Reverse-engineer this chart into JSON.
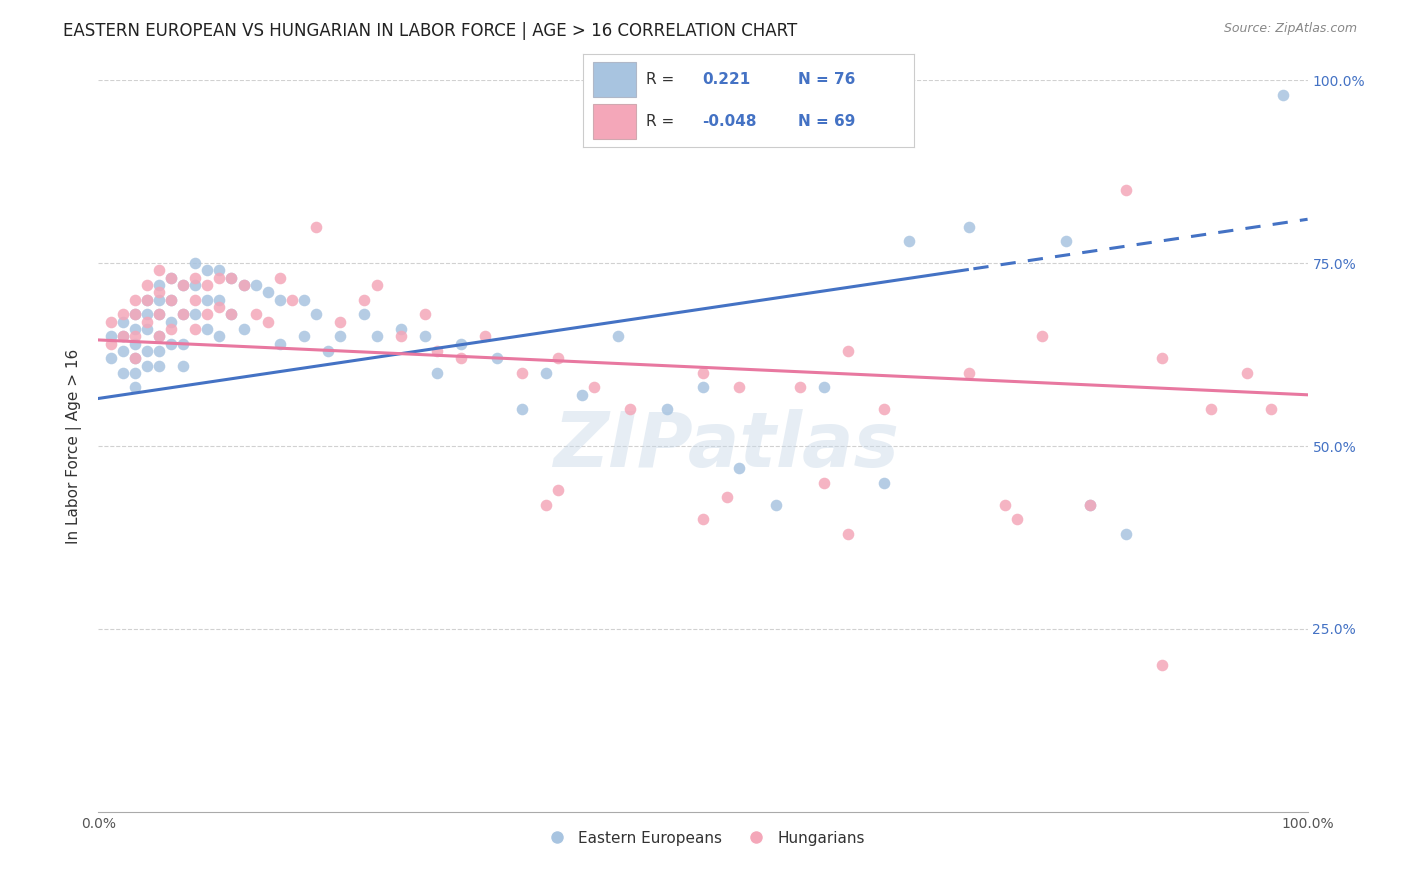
{
  "title": "EASTERN EUROPEAN VS HUNGARIAN IN LABOR FORCE | AGE > 16 CORRELATION CHART",
  "source_text": "Source: ZipAtlas.com",
  "ylabel": "In Labor Force | Age > 16",
  "xlim": [
    0.0,
    1.0
  ],
  "ylim": [
    0.0,
    1.0
  ],
  "legend_blue_r": "0.221",
  "legend_blue_n": "76",
  "legend_pink_r": "-0.048",
  "legend_pink_n": "69",
  "blue_color": "#a8c4e0",
  "pink_color": "#f4a7b9",
  "line_blue_color": "#4472c4",
  "line_pink_color": "#e878a0",
  "watermark": "ZIPatlas",
  "title_fontsize": 13,
  "blue_line_start_y": 0.565,
  "blue_line_end_y": 0.81,
  "pink_line_start_y": 0.645,
  "pink_line_end_y": 0.57,
  "blue_dash_split": 0.72,
  "blue_scatter_x": [
    0.01,
    0.01,
    0.02,
    0.02,
    0.02,
    0.02,
    0.03,
    0.03,
    0.03,
    0.03,
    0.03,
    0.03,
    0.04,
    0.04,
    0.04,
    0.04,
    0.04,
    0.05,
    0.05,
    0.05,
    0.05,
    0.05,
    0.05,
    0.06,
    0.06,
    0.06,
    0.06,
    0.07,
    0.07,
    0.07,
    0.07,
    0.08,
    0.08,
    0.08,
    0.09,
    0.09,
    0.09,
    0.1,
    0.1,
    0.1,
    0.11,
    0.11,
    0.12,
    0.12,
    0.13,
    0.14,
    0.15,
    0.15,
    0.17,
    0.17,
    0.18,
    0.19,
    0.2,
    0.22,
    0.23,
    0.25,
    0.27,
    0.28,
    0.3,
    0.33,
    0.35,
    0.37,
    0.4,
    0.43,
    0.47,
    0.5,
    0.53,
    0.56,
    0.6,
    0.65,
    0.67,
    0.72,
    0.8,
    0.82,
    0.85,
    0.98
  ],
  "blue_scatter_y": [
    0.65,
    0.62,
    0.67,
    0.65,
    0.63,
    0.6,
    0.68,
    0.66,
    0.64,
    0.62,
    0.6,
    0.58,
    0.7,
    0.68,
    0.66,
    0.63,
    0.61,
    0.72,
    0.7,
    0.68,
    0.65,
    0.63,
    0.61,
    0.73,
    0.7,
    0.67,
    0.64,
    0.72,
    0.68,
    0.64,
    0.61,
    0.75,
    0.72,
    0.68,
    0.74,
    0.7,
    0.66,
    0.74,
    0.7,
    0.65,
    0.73,
    0.68,
    0.72,
    0.66,
    0.72,
    0.71,
    0.7,
    0.64,
    0.7,
    0.65,
    0.68,
    0.63,
    0.65,
    0.68,
    0.65,
    0.66,
    0.65,
    0.6,
    0.64,
    0.62,
    0.55,
    0.6,
    0.57,
    0.65,
    0.55,
    0.58,
    0.47,
    0.42,
    0.58,
    0.45,
    0.78,
    0.8,
    0.78,
    0.42,
    0.38,
    0.98
  ],
  "pink_scatter_x": [
    0.01,
    0.01,
    0.02,
    0.02,
    0.03,
    0.03,
    0.03,
    0.03,
    0.04,
    0.04,
    0.04,
    0.05,
    0.05,
    0.05,
    0.05,
    0.06,
    0.06,
    0.06,
    0.07,
    0.07,
    0.08,
    0.08,
    0.08,
    0.09,
    0.09,
    0.1,
    0.1,
    0.11,
    0.11,
    0.12,
    0.13,
    0.14,
    0.15,
    0.16,
    0.18,
    0.2,
    0.22,
    0.23,
    0.25,
    0.27,
    0.28,
    0.3,
    0.32,
    0.35,
    0.38,
    0.41,
    0.44,
    0.5,
    0.53,
    0.58,
    0.6,
    0.62,
    0.65,
    0.72,
    0.75,
    0.78,
    0.82,
    0.85,
    0.88,
    0.92,
    0.95,
    0.97,
    0.37,
    0.38,
    0.5,
    0.52,
    0.62,
    0.76,
    0.88
  ],
  "pink_scatter_y": [
    0.67,
    0.64,
    0.68,
    0.65,
    0.7,
    0.68,
    0.65,
    0.62,
    0.72,
    0.7,
    0.67,
    0.74,
    0.71,
    0.68,
    0.65,
    0.73,
    0.7,
    0.66,
    0.72,
    0.68,
    0.73,
    0.7,
    0.66,
    0.72,
    0.68,
    0.73,
    0.69,
    0.73,
    0.68,
    0.72,
    0.68,
    0.67,
    0.73,
    0.7,
    0.8,
    0.67,
    0.7,
    0.72,
    0.65,
    0.68,
    0.63,
    0.62,
    0.65,
    0.6,
    0.62,
    0.58,
    0.55,
    0.6,
    0.58,
    0.58,
    0.45,
    0.63,
    0.55,
    0.6,
    0.42,
    0.65,
    0.42,
    0.85,
    0.62,
    0.55,
    0.6,
    0.55,
    0.42,
    0.44,
    0.4,
    0.43,
    0.38,
    0.4,
    0.2
  ]
}
